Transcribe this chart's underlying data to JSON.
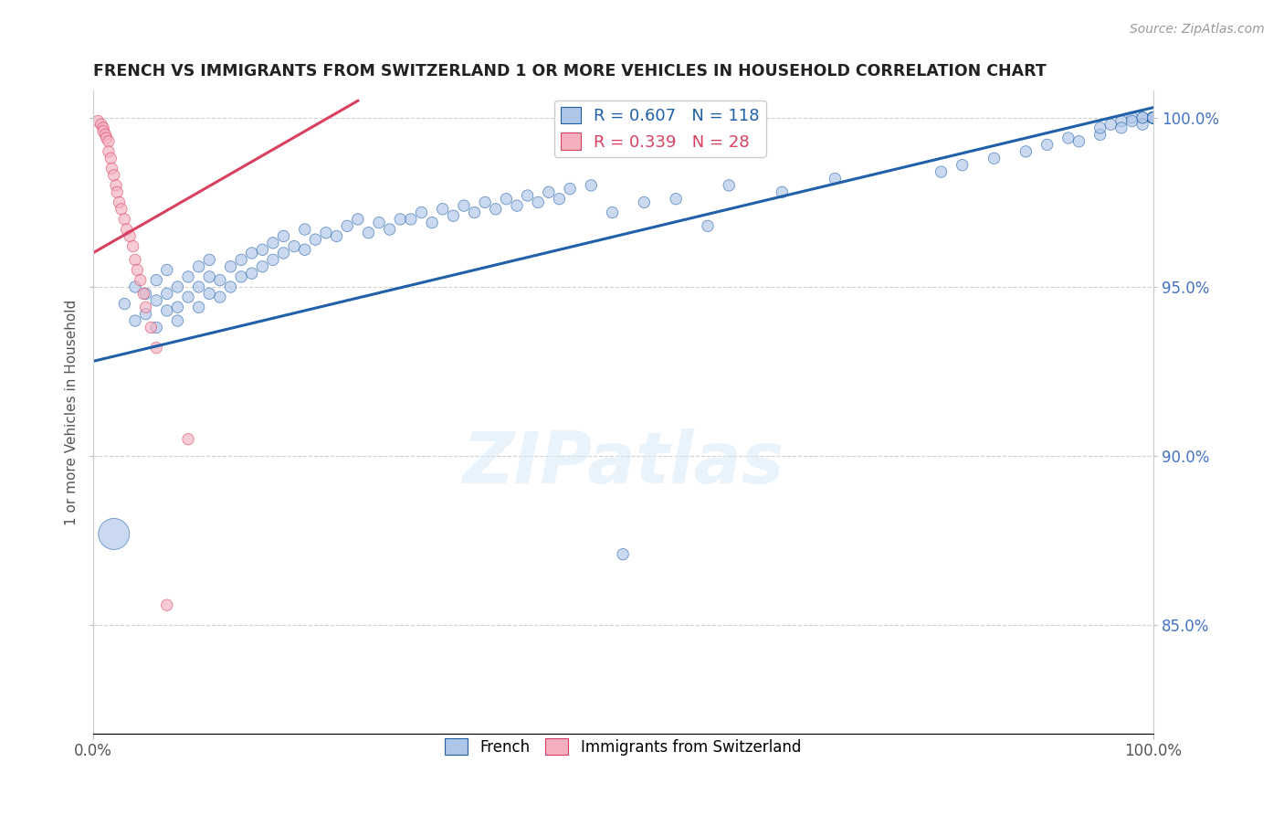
{
  "title": "FRENCH VS IMMIGRANTS FROM SWITZERLAND 1 OR MORE VEHICLES IN HOUSEHOLD CORRELATION CHART",
  "source": "Source: ZipAtlas.com",
  "ylabel": "1 or more Vehicles in Household",
  "xmin": 0.0,
  "xmax": 1.0,
  "ymin": 0.818,
  "ymax": 1.008,
  "yticks": [
    0.85,
    0.9,
    0.95,
    1.0
  ],
  "ytick_labels": [
    "85.0%",
    "90.0%",
    "95.0%",
    "100.0%"
  ],
  "xtick_labels": [
    "0.0%",
    "100.0%"
  ],
  "xtick_pos": [
    0.0,
    1.0
  ],
  "blue_R": 0.607,
  "blue_N": 118,
  "pink_R": 0.339,
  "pink_N": 28,
  "blue_color": "#aec6e8",
  "pink_color": "#f4b0bf",
  "blue_line_color": "#2060a8",
  "pink_line_color": "#d84060",
  "watermark": "ZIPatlas",
  "blue_scatter_x": [
    0.02,
    0.03,
    0.04,
    0.04,
    0.05,
    0.05,
    0.06,
    0.06,
    0.06,
    0.07,
    0.07,
    0.07,
    0.08,
    0.08,
    0.08,
    0.09,
    0.09,
    0.1,
    0.1,
    0.1,
    0.11,
    0.11,
    0.11,
    0.12,
    0.12,
    0.13,
    0.13,
    0.14,
    0.14,
    0.15,
    0.15,
    0.16,
    0.16,
    0.17,
    0.17,
    0.18,
    0.18,
    0.19,
    0.2,
    0.2,
    0.21,
    0.22,
    0.23,
    0.24,
    0.25,
    0.26,
    0.27,
    0.28,
    0.29,
    0.3,
    0.31,
    0.32,
    0.33,
    0.34,
    0.35,
    0.36,
    0.37,
    0.38,
    0.39,
    0.4,
    0.41,
    0.42,
    0.43,
    0.44,
    0.45,
    0.47,
    0.49,
    0.5,
    0.52,
    0.55,
    0.58,
    0.6,
    0.65,
    0.7,
    0.8,
    0.82,
    0.85,
    0.88,
    0.9,
    0.92,
    0.93,
    0.95,
    0.95,
    0.96,
    0.97,
    0.97,
    0.98,
    0.98,
    0.99,
    0.99,
    0.99,
    1.0,
    1.0,
    1.0,
    1.0,
    1.0,
    1.0,
    1.0,
    1.0,
    1.0,
    1.0,
    1.0,
    1.0,
    1.0,
    1.0,
    1.0,
    1.0,
    1.0,
    1.0,
    1.0,
    1.0,
    1.0,
    1.0,
    1.0,
    1.0,
    1.0,
    1.0,
    1.0
  ],
  "blue_scatter_y": [
    0.877,
    0.945,
    0.95,
    0.94,
    0.948,
    0.942,
    0.946,
    0.938,
    0.952,
    0.943,
    0.948,
    0.955,
    0.944,
    0.95,
    0.94,
    0.947,
    0.953,
    0.944,
    0.95,
    0.956,
    0.948,
    0.953,
    0.958,
    0.947,
    0.952,
    0.95,
    0.956,
    0.953,
    0.958,
    0.954,
    0.96,
    0.956,
    0.961,
    0.958,
    0.963,
    0.96,
    0.965,
    0.962,
    0.961,
    0.967,
    0.964,
    0.966,
    0.965,
    0.968,
    0.97,
    0.966,
    0.969,
    0.967,
    0.97,
    0.97,
    0.972,
    0.969,
    0.973,
    0.971,
    0.974,
    0.972,
    0.975,
    0.973,
    0.976,
    0.974,
    0.977,
    0.975,
    0.978,
    0.976,
    0.979,
    0.98,
    0.972,
    0.871,
    0.975,
    0.976,
    0.968,
    0.98,
    0.978,
    0.982,
    0.984,
    0.986,
    0.988,
    0.99,
    0.992,
    0.994,
    0.993,
    0.995,
    0.997,
    0.998,
    0.999,
    0.997,
    1.0,
    0.999,
    1.0,
    0.998,
    1.0,
    1.0,
    1.0,
    1.0,
    1.0,
    1.0,
    1.0,
    1.0,
    1.0,
    1.0,
    1.0,
    1.0,
    1.0,
    1.0,
    1.0,
    1.0,
    1.0,
    1.0,
    1.0,
    1.0,
    1.0,
    1.0,
    1.0,
    1.0,
    1.0,
    1.0,
    1.0,
    1.0
  ],
  "blue_scatter_sizes": [
    600,
    80,
    80,
    80,
    80,
    80,
    80,
    80,
    80,
    80,
    80,
    80,
    80,
    80,
    80,
    80,
    80,
    80,
    80,
    80,
    80,
    80,
    80,
    80,
    80,
    80,
    80,
    80,
    80,
    80,
    80,
    80,
    80,
    80,
    80,
    80,
    80,
    80,
    80,
    80,
    80,
    80,
    80,
    80,
    80,
    80,
    80,
    80,
    80,
    80,
    80,
    80,
    80,
    80,
    80,
    80,
    80,
    80,
    80,
    80,
    80,
    80,
    80,
    80,
    80,
    80,
    80,
    80,
    80,
    80,
    80,
    80,
    80,
    80,
    80,
    80,
    80,
    80,
    80,
    80,
    80,
    80,
    80,
    80,
    80,
    80,
    80,
    80,
    80,
    80,
    80,
    80,
    80,
    80,
    80,
    80,
    80,
    80,
    80,
    80,
    80,
    80,
    80,
    80,
    80,
    80,
    80,
    80,
    80,
    80,
    80,
    80,
    80,
    80,
    80,
    80,
    80,
    80
  ],
  "pink_scatter_x": [
    0.005,
    0.008,
    0.01,
    0.01,
    0.012,
    0.013,
    0.015,
    0.015,
    0.017,
    0.018,
    0.02,
    0.022,
    0.023,
    0.025,
    0.027,
    0.03,
    0.032,
    0.035,
    0.038,
    0.04,
    0.042,
    0.045,
    0.048,
    0.05,
    0.055,
    0.06,
    0.07,
    0.09
  ],
  "pink_scatter_y": [
    0.999,
    0.998,
    0.997,
    0.996,
    0.995,
    0.994,
    0.993,
    0.99,
    0.988,
    0.985,
    0.983,
    0.98,
    0.978,
    0.975,
    0.973,
    0.97,
    0.967,
    0.965,
    0.962,
    0.958,
    0.955,
    0.952,
    0.948,
    0.944,
    0.938,
    0.932,
    0.856,
    0.905
  ],
  "pink_scatter_sizes": [
    80,
    80,
    80,
    80,
    80,
    80,
    80,
    80,
    80,
    80,
    80,
    80,
    80,
    80,
    80,
    80,
    80,
    80,
    80,
    80,
    80,
    80,
    80,
    80,
    80,
    80,
    80,
    80
  ],
  "blue_trend_x0": 0.0,
  "blue_trend_y0": 0.928,
  "blue_trend_x1": 1.0,
  "blue_trend_y1": 1.003,
  "pink_trend_x0": 0.0,
  "pink_trend_y0": 0.96,
  "pink_trend_x1": 0.25,
  "pink_trend_y1": 1.005
}
